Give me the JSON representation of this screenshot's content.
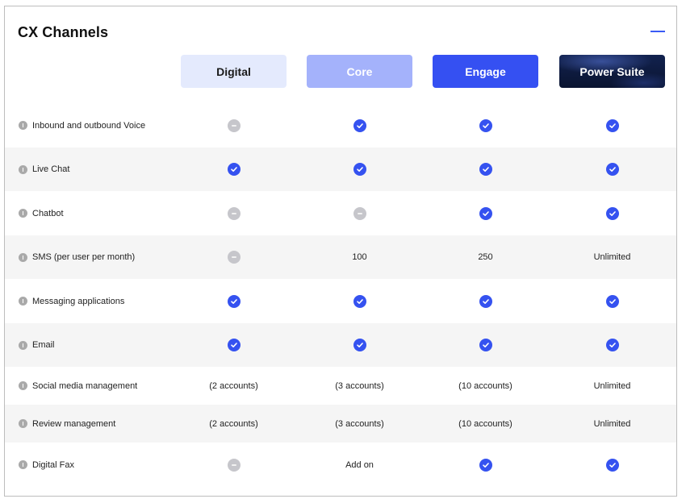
{
  "section": {
    "title": "CX Channels"
  },
  "plans": [
    "Digital",
    "Core",
    "Engage",
    "Power Suite"
  ],
  "rows": [
    {
      "feature": "Inbound and outbound Voice",
      "cells": [
        {
          "type": "dash",
          "text": ""
        },
        {
          "type": "check",
          "text": ""
        },
        {
          "type": "check",
          "text": ""
        },
        {
          "type": "check",
          "text": ""
        }
      ]
    },
    {
      "feature": "Live Chat",
      "cells": [
        {
          "type": "check",
          "text": ""
        },
        {
          "type": "check",
          "text": ""
        },
        {
          "type": "check",
          "text": ""
        },
        {
          "type": "check",
          "text": ""
        }
      ]
    },
    {
      "feature": "Chatbot",
      "cells": [
        {
          "type": "dash",
          "text": ""
        },
        {
          "type": "dash",
          "text": ""
        },
        {
          "type": "check",
          "text": ""
        },
        {
          "type": "check",
          "text": ""
        }
      ]
    },
    {
      "feature": "SMS (per user per month)",
      "cells": [
        {
          "type": "dash",
          "text": ""
        },
        {
          "type": "text",
          "text": "100"
        },
        {
          "type": "text",
          "text": "250"
        },
        {
          "type": "text",
          "text": "Unlimited"
        }
      ]
    },
    {
      "feature": "Messaging applications",
      "cells": [
        {
          "type": "check",
          "text": ""
        },
        {
          "type": "check",
          "text": ""
        },
        {
          "type": "check",
          "text": ""
        },
        {
          "type": "check",
          "text": ""
        }
      ]
    },
    {
      "feature": "Email",
      "cells": [
        {
          "type": "check",
          "text": ""
        },
        {
          "type": "check",
          "text": ""
        },
        {
          "type": "check",
          "text": ""
        },
        {
          "type": "check",
          "text": ""
        }
      ]
    },
    {
      "feature": "Social media management",
      "cells": [
        {
          "type": "text",
          "text": "(2 accounts)"
        },
        {
          "type": "text",
          "text": "(3 accounts)"
        },
        {
          "type": "text",
          "text": "(10 accounts)"
        },
        {
          "type": "text",
          "text": "Unlimited"
        }
      ]
    },
    {
      "feature": "Review management",
      "cells": [
        {
          "type": "text",
          "text": "(2 accounts)"
        },
        {
          "type": "text",
          "text": "(3 accounts)"
        },
        {
          "type": "text",
          "text": "(10 accounts)"
        },
        {
          "type": "text",
          "text": "Unlimited"
        }
      ]
    },
    {
      "feature": "Digital Fax",
      "cells": [
        {
          "type": "dash",
          "text": ""
        },
        {
          "type": "text",
          "text": "Add on"
        },
        {
          "type": "check",
          "text": ""
        },
        {
          "type": "check",
          "text": ""
        }
      ]
    }
  ],
  "colors": {
    "accent": "#3552f0",
    "check": "#3552f0",
    "dash": "#c6c6cb",
    "shaded_row": "#f5f5f5"
  },
  "icons": {
    "check": "check-circle-icon",
    "dash": "minus-circle-icon",
    "info": "info-icon",
    "collapse": "minus-icon"
  }
}
